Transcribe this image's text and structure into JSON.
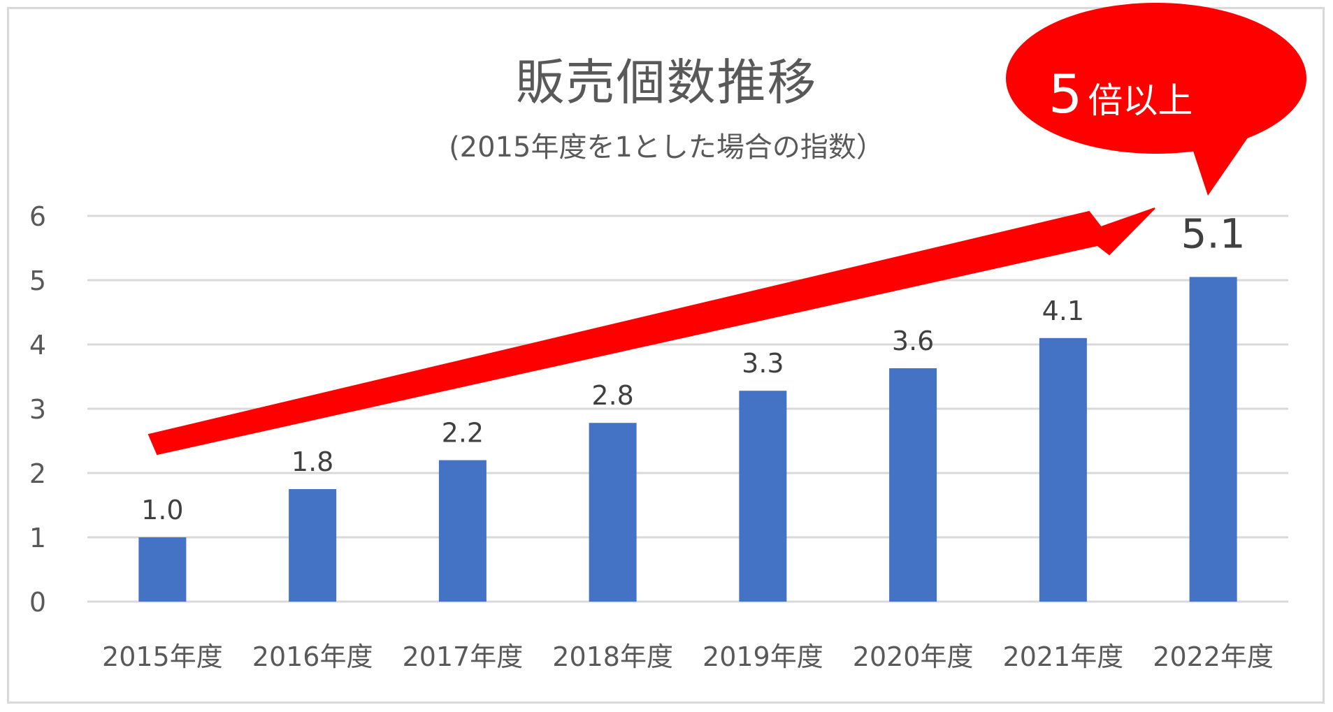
{
  "title": "販売個数推移",
  "subtitle": "(2015年度を1とした場合の指数）",
  "callout": {
    "number": "5",
    "suffix": "倍以上"
  },
  "colors": {
    "bar": "#4472c4",
    "arrow": "#ff0000",
    "grid": "#d9d9d9",
    "text": "#595959"
  },
  "chart_data": {
    "type": "bar",
    "categories": [
      "2015年度",
      "2016年度",
      "2017年度",
      "2018年度",
      "2019年度",
      "2020年度",
      "2021年度",
      "2022年度"
    ],
    "values": [
      1.0,
      1.75,
      2.2,
      2.78,
      3.28,
      3.63,
      4.1,
      5.05
    ],
    "data_labels": [
      "1.0",
      "1.8",
      "2.2",
      "2.8",
      "3.3",
      "3.6",
      "4.1",
      "5.1"
    ],
    "yticks": [
      "0",
      "1",
      "2",
      "3",
      "4",
      "5",
      "6"
    ],
    "ylim": [
      0,
      6
    ],
    "grid": true,
    "title": "販売個数推移",
    "subtitle": "(2015年度を1とした場合の指数）",
    "xlabel": "",
    "ylabel": ""
  }
}
